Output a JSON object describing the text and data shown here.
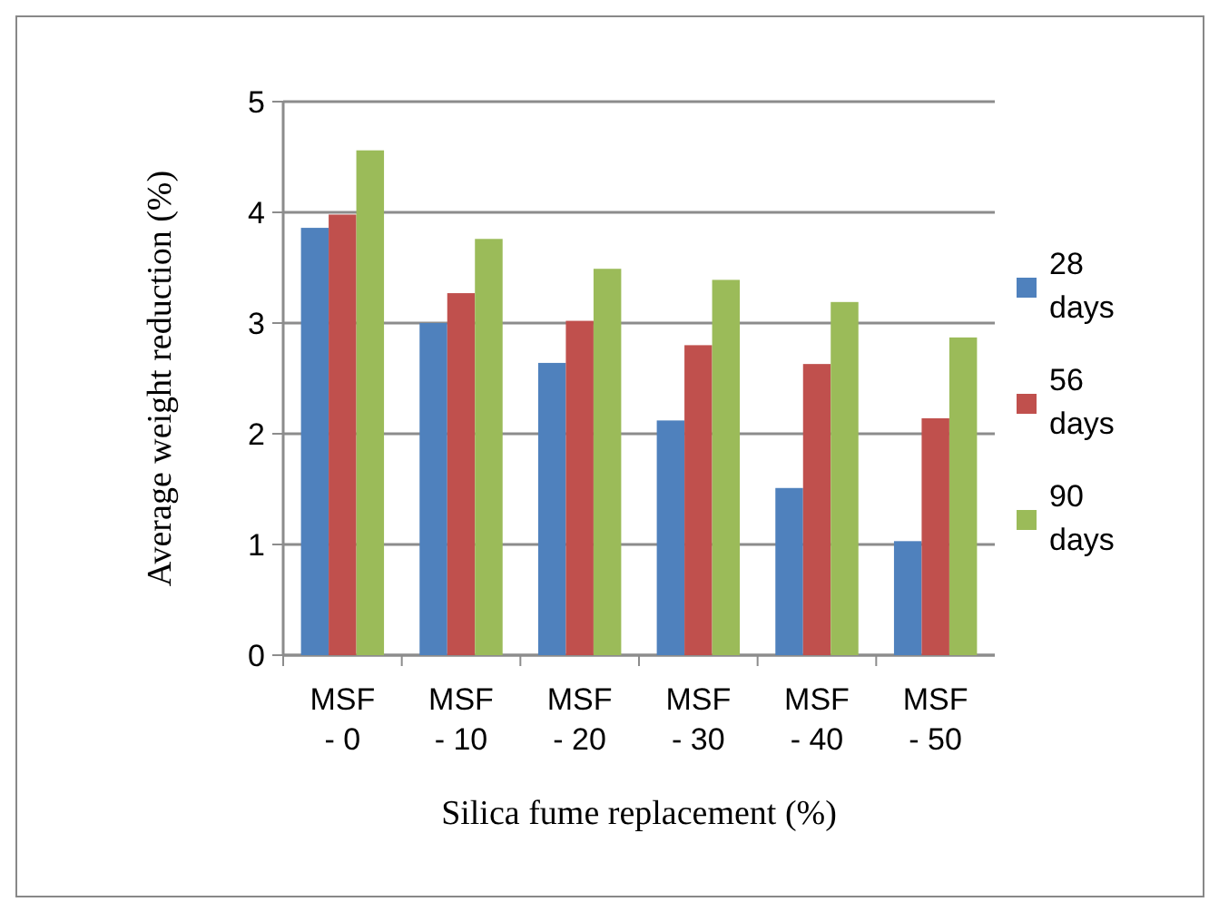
{
  "chart_data": {
    "type": "bar",
    "xlabel": "Silica fume replacement (%)",
    "ylabel": "Average weight reduction (%)",
    "categories": [
      "MSF - 0",
      "MSF - 10",
      "MSF - 20",
      "MSF - 30",
      "MSF - 40",
      "MSF - 50"
    ],
    "series": [
      {
        "name": "28 days",
        "color": "#4f81bd",
        "values": [
          3.86,
          3.0,
          2.64,
          2.12,
          1.51,
          1.03
        ]
      },
      {
        "name": "56 days",
        "color": "#c0504d",
        "values": [
          3.98,
          3.27,
          3.02,
          2.8,
          2.63,
          2.14
        ]
      },
      {
        "name": "90 days",
        "color": "#9bbb59",
        "values": [
          4.56,
          3.76,
          3.49,
          3.39,
          3.19,
          2.87
        ]
      }
    ],
    "ylim": [
      0,
      5
    ],
    "yticks": [
      0,
      1,
      2,
      3,
      4,
      5
    ],
    "grid": "y",
    "legend": "right"
  }
}
